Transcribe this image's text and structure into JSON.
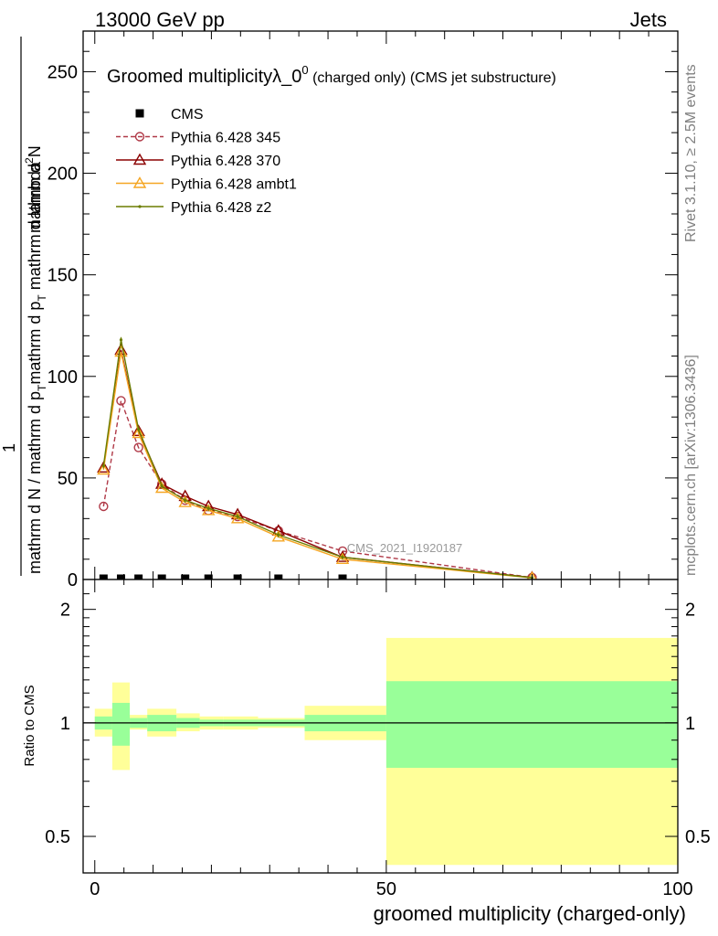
{
  "header": {
    "left": "13000 GeV pp",
    "right": "Jets"
  },
  "side_labels": {
    "rivet": "Rivet 3.1.10, ≥ 2.5M events",
    "mcplots": "mcplots.cern.ch [arXiv:1306.3436]"
  },
  "watermark": "CMS_2021_I1920187",
  "chart_data": [
    {
      "type": "line",
      "title": "Groomed multiplicityλ_0⁰ (charged only) (CMS jet substructure)",
      "title_main": "Groomed multiplicityλ_0",
      "title_sup": "0",
      "title_tail": " (charged only) (CMS jet substructure)",
      "ylabel": {
        "prefix": "1",
        "denominator": "mathrm d N / mathrm d p",
        "sub_T1": "T",
        "mid": "mathrm d p",
        "sub_T2": "T",
        "tail": " mathrm d lambda",
        "numerator": "mathrm d",
        "numerator_sup": "2",
        "numerator_tail": "N"
      },
      "ylabel_full": "1 / mathrm d N / mathrm d p_T mathrm d p_T mathrm d lambda · mathrm d²N",
      "xlim": [
        -2,
        100
      ],
      "ylim": [
        0,
        270
      ],
      "yticks": [
        0,
        50,
        100,
        150,
        200,
        250
      ],
      "ytick_labels": [
        "0",
        "50",
        "100",
        "150",
        "200",
        "250"
      ],
      "legend_position": "top-left",
      "series": [
        {
          "name": "CMS",
          "color": "#000000",
          "x": [
            1.5,
            4.5,
            7.5,
            11.5,
            15.5,
            19.5,
            24.5,
            31.5,
            42.5,
            75
          ],
          "y": [
            0.5,
            0.5,
            0.5,
            0.5,
            0.5,
            0.5,
            0.5,
            0.5,
            0.5,
            0.3
          ]
        },
        {
          "name": "Pythia 6.428 345",
          "color": "#b03a48",
          "marker": "open-circle",
          "dashed": true,
          "x": [
            1.5,
            4.5,
            7.5,
            11.5,
            15.5,
            19.5,
            24.5,
            31.5,
            42.5,
            75
          ],
          "y": [
            36,
            88,
            65,
            47,
            39,
            34,
            31,
            24,
            14,
            1
          ]
        },
        {
          "name": "Pythia 6.428 370",
          "color": "#8b0000",
          "marker": "open-triangle",
          "dashed": false,
          "x": [
            1.5,
            4.5,
            7.5,
            11.5,
            15.5,
            19.5,
            24.5,
            31.5,
            42.5,
            75
          ],
          "y": [
            55,
            113,
            73,
            47,
            41,
            36,
            32,
            24,
            11,
            1
          ]
        },
        {
          "name": "Pythia 6.428 ambt1",
          "color": "#f5a623",
          "marker": "open-triangle",
          "dashed": false,
          "x": [
            1.5,
            4.5,
            7.5,
            11.5,
            15.5,
            19.5,
            24.5,
            31.5,
            42.5,
            75
          ],
          "y": [
            54,
            112,
            72,
            45,
            38,
            34,
            30,
            21,
            10,
            0.8
          ]
        },
        {
          "name": "Pythia 6.428 z2",
          "color": "#6b7d00",
          "marker": "dot",
          "dashed": false,
          "x": [
            1.5,
            4.5,
            7.5,
            11.5,
            15.5,
            19.5,
            24.5,
            31.5,
            42.5,
            75
          ],
          "y": [
            56,
            118,
            74,
            46,
            39,
            35,
            31,
            22,
            11,
            0.9
          ]
        }
      ]
    },
    {
      "type": "area",
      "ylabel": "Ratio to CMS",
      "xlabel": "groomed multiplicity (charged-only)",
      "xlim": [
        -2,
        100
      ],
      "ylim": [
        0.4,
        2.4
      ],
      "log_y": true,
      "xticks": [
        0,
        50,
        100
      ],
      "xtick_labels": [
        "0",
        "50",
        "100"
      ],
      "yticks": [
        0.5,
        1,
        2
      ],
      "ytick_labels": [
        "0.5",
        "1",
        "2"
      ],
      "colors": {
        "inner_band": "#99ff99",
        "outer_band": "#ffff99"
      },
      "bands": [
        {
          "x0": 0,
          "x1": 3,
          "inner": [
            0.96,
            1.04
          ],
          "outer": [
            0.92,
            1.09
          ]
        },
        {
          "x0": 3,
          "x1": 6,
          "inner": [
            0.87,
            1.13
          ],
          "outer": [
            0.75,
            1.28
          ]
        },
        {
          "x0": 6,
          "x1": 9,
          "inner": [
            0.97,
            1.03
          ],
          "outer": [
            0.96,
            1.05
          ]
        },
        {
          "x0": 9,
          "x1": 14,
          "inner": [
            0.95,
            1.05
          ],
          "outer": [
            0.92,
            1.09
          ]
        },
        {
          "x0": 14,
          "x1": 18,
          "inner": [
            0.97,
            1.03
          ],
          "outer": [
            0.95,
            1.06
          ]
        },
        {
          "x0": 18,
          "x1": 22,
          "inner": [
            0.98,
            1.02
          ],
          "outer": [
            0.96,
            1.04
          ]
        },
        {
          "x0": 22,
          "x1": 28,
          "inner": [
            0.98,
            1.02
          ],
          "outer": [
            0.96,
            1.04
          ]
        },
        {
          "x0": 28,
          "x1": 36,
          "inner": [
            0.98,
            1.02
          ],
          "outer": [
            0.97,
            1.03
          ]
        },
        {
          "x0": 36,
          "x1": 50,
          "inner": [
            0.95,
            1.05
          ],
          "outer": [
            0.9,
            1.11
          ]
        },
        {
          "x0": 50,
          "x1": 100,
          "inner": [
            0.76,
            1.29
          ],
          "outer": [
            0.42,
            1.68
          ]
        }
      ]
    }
  ]
}
